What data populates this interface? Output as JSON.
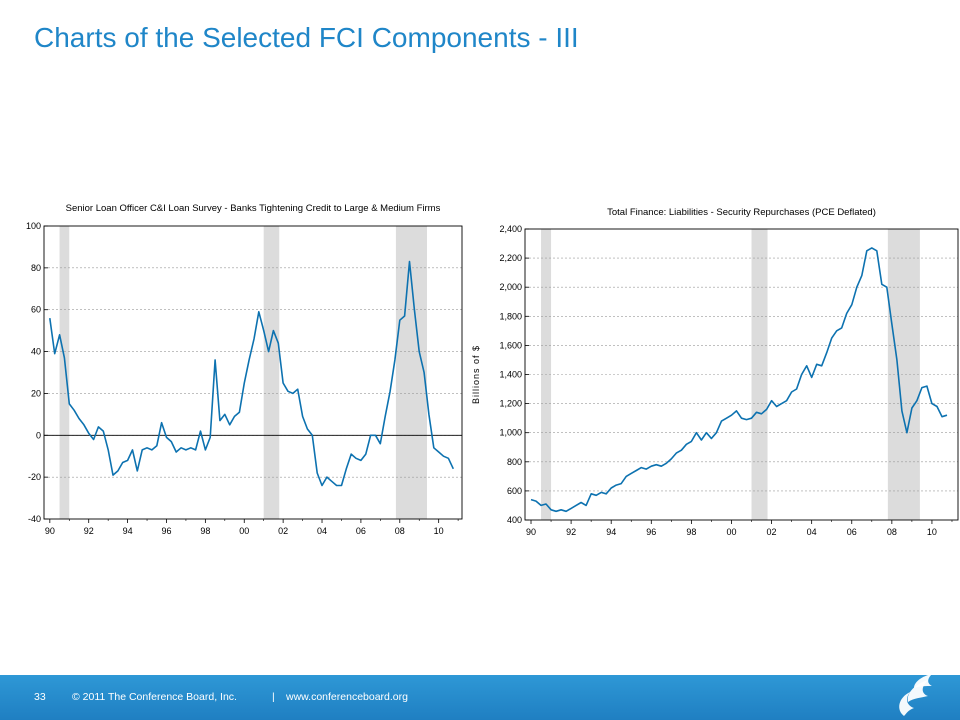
{
  "slide": {
    "title": "Charts of the Selected FCI Components - III"
  },
  "footer": {
    "page_number": "33",
    "copyright": "© 2011 The Conference Board, Inc.",
    "separator": "|",
    "url": "www.conferenceboard.org"
  },
  "colors": {
    "title": "#1f86c8",
    "line": "#0d72b0",
    "recession_shading": "#dcdcdc",
    "footer_bar": "#2381c4"
  },
  "logo": {
    "icon": "conference-board-flame-logo-icon"
  },
  "chart_data": [
    {
      "type": "line",
      "title": "Senior Loan Officer C&I Loan Survey - Banks Tightening Credit to Large & Medium Firms",
      "ylabel": "",
      "xlim": [
        1989.7,
        2011.2
      ],
      "ylim": [
        -40,
        100
      ],
      "x_tick_values": [
        1990,
        1992,
        1994,
        1996,
        1998,
        2000,
        2002,
        2004,
        2006,
        2008,
        2010
      ],
      "x_tick_labels": [
        "90",
        "92",
        "94",
        "96",
        "98",
        "00",
        "02",
        "04",
        "06",
        "08",
        "10"
      ],
      "y_tick_values": [
        -40,
        -20,
        0,
        20,
        40,
        60,
        80,
        100
      ],
      "y_tick_labels": [
        "-40",
        "-20",
        "0",
        "20",
        "40",
        "60",
        "80",
        "100"
      ],
      "grid": "horizontal dashed",
      "zero_line": true,
      "recessions": [
        [
          1990.5,
          1991.0
        ],
        [
          2001.0,
          2001.8
        ],
        [
          2007.8,
          2009.4
        ]
      ],
      "series": [
        {
          "x": [
            1990.0,
            1990.25,
            1990.5,
            1990.75,
            1991.0,
            1991.25,
            1991.5,
            1991.75,
            1992.0,
            1992.25,
            1992.5,
            1992.75,
            1993.0,
            1993.25,
            1993.5,
            1993.75,
            1994.0,
            1994.25,
            1994.5,
            1994.75,
            1995.0,
            1995.25,
            1995.5,
            1995.75,
            1996.0,
            1996.25,
            1996.5,
            1996.75,
            1997.0,
            1997.25,
            1997.5,
            1997.75,
            1998.0,
            1998.25,
            1998.5,
            1998.75,
            1999.0,
            1999.25,
            1999.5,
            1999.75,
            2000.0,
            2000.25,
            2000.5,
            2000.75,
            2001.0,
            2001.25,
            2001.5,
            2001.75,
            2002.0,
            2002.25,
            2002.5,
            2002.75,
            2003.0,
            2003.25,
            2003.5,
            2003.75,
            2004.0,
            2004.25,
            2004.5,
            2004.75,
            2005.0,
            2005.25,
            2005.5,
            2005.75,
            2006.0,
            2006.25,
            2006.5,
            2006.75,
            2007.0,
            2007.25,
            2007.5,
            2007.75,
            2008.0,
            2008.25,
            2008.5,
            2008.75,
            2009.0,
            2009.25,
            2009.5,
            2009.75,
            2010.0,
            2010.25,
            2010.5,
            2010.75
          ],
          "values": [
            56,
            39,
            48,
            37,
            15,
            12,
            8,
            5,
            1,
            -2,
            4,
            2,
            -7,
            -19,
            -17,
            -13,
            -12,
            -7,
            -17,
            -7,
            -6,
            -7,
            -5,
            6,
            -1,
            -3,
            -8,
            -6,
            -7,
            -6,
            -7,
            2,
            -7,
            -1,
            36,
            7,
            10,
            5,
            9,
            11,
            25,
            36,
            46,
            59,
            50,
            40,
            50,
            44,
            25,
            21,
            20,
            22,
            9,
            3,
            0,
            -18,
            -24,
            -20,
            -22,
            -24,
            -24,
            -16,
            -9,
            -11,
            -12,
            -9,
            0,
            0,
            -4,
            9,
            21,
            36,
            55,
            57,
            83,
            60,
            40,
            30,
            10,
            -6,
            -8,
            -10,
            -11,
            -16
          ]
        }
      ]
    },
    {
      "type": "line",
      "title": "Total Finance: Liabilities - Security Repurchases (PCE Deflated)",
      "ylabel": "Billions of $",
      "xlim": [
        1989.7,
        2011.3
      ],
      "ylim": [
        400,
        2400
      ],
      "x_tick_values": [
        1990,
        1992,
        1994,
        1996,
        1998,
        2000,
        2002,
        2004,
        2006,
        2008,
        2010
      ],
      "x_tick_labels": [
        "90",
        "92",
        "94",
        "96",
        "98",
        "00",
        "02",
        "04",
        "06",
        "08",
        "10"
      ],
      "y_tick_values": [
        400,
        600,
        800,
        1000,
        1200,
        1400,
        1600,
        1800,
        2000,
        2200,
        2400
      ],
      "y_tick_labels": [
        "400",
        "600",
        "800",
        "1,000",
        "1,200",
        "1,400",
        "1,600",
        "1,800",
        "2,000",
        "2,200",
        "2,400"
      ],
      "grid": "horizontal dashed",
      "zero_line": false,
      "recessions": [
        [
          1990.5,
          1991.0
        ],
        [
          2001.0,
          2001.8
        ],
        [
          2007.8,
          2009.4
        ]
      ],
      "series": [
        {
          "x": [
            1990.0,
            1990.25,
            1990.5,
            1990.75,
            1991.0,
            1991.25,
            1991.5,
            1991.75,
            1992.0,
            1992.25,
            1992.5,
            1992.75,
            1993.0,
            1993.25,
            1993.5,
            1993.75,
            1994.0,
            1994.25,
            1994.5,
            1994.75,
            1995.0,
            1995.25,
            1995.5,
            1995.75,
            1996.0,
            1996.25,
            1996.5,
            1996.75,
            1997.0,
            1997.25,
            1997.5,
            1997.75,
            1998.0,
            1998.25,
            1998.5,
            1998.75,
            1999.0,
            1999.25,
            1999.5,
            1999.75,
            2000.0,
            2000.25,
            2000.5,
            2000.75,
            2001.0,
            2001.25,
            2001.5,
            2001.75,
            2002.0,
            2002.25,
            2002.5,
            2002.75,
            2003.0,
            2003.25,
            2003.5,
            2003.75,
            2004.0,
            2004.25,
            2004.5,
            2004.75,
            2005.0,
            2005.25,
            2005.5,
            2005.75,
            2006.0,
            2006.25,
            2006.5,
            2006.75,
            2007.0,
            2007.25,
            2007.5,
            2007.75,
            2008.0,
            2008.25,
            2008.5,
            2008.75,
            2009.0,
            2009.25,
            2009.5,
            2009.75,
            2010.0,
            2010.25,
            2010.5,
            2010.75
          ],
          "values": [
            540,
            530,
            500,
            510,
            470,
            460,
            470,
            460,
            480,
            500,
            520,
            500,
            580,
            570,
            590,
            580,
            620,
            640,
            650,
            700,
            720,
            740,
            760,
            750,
            770,
            780,
            770,
            790,
            820,
            860,
            880,
            920,
            940,
            1000,
            950,
            1000,
            960,
            1000,
            1080,
            1100,
            1120,
            1150,
            1100,
            1090,
            1100,
            1140,
            1130,
            1160,
            1220,
            1180,
            1200,
            1220,
            1280,
            1300,
            1400,
            1460,
            1380,
            1470,
            1460,
            1550,
            1650,
            1700,
            1720,
            1820,
            1880,
            2000,
            2080,
            2250,
            2270,
            2250,
            2020,
            2000,
            1750,
            1500,
            1150,
            1000,
            1170,
            1220,
            1310,
            1320,
            1200,
            1180,
            1110,
            1120
          ]
        }
      ]
    }
  ]
}
